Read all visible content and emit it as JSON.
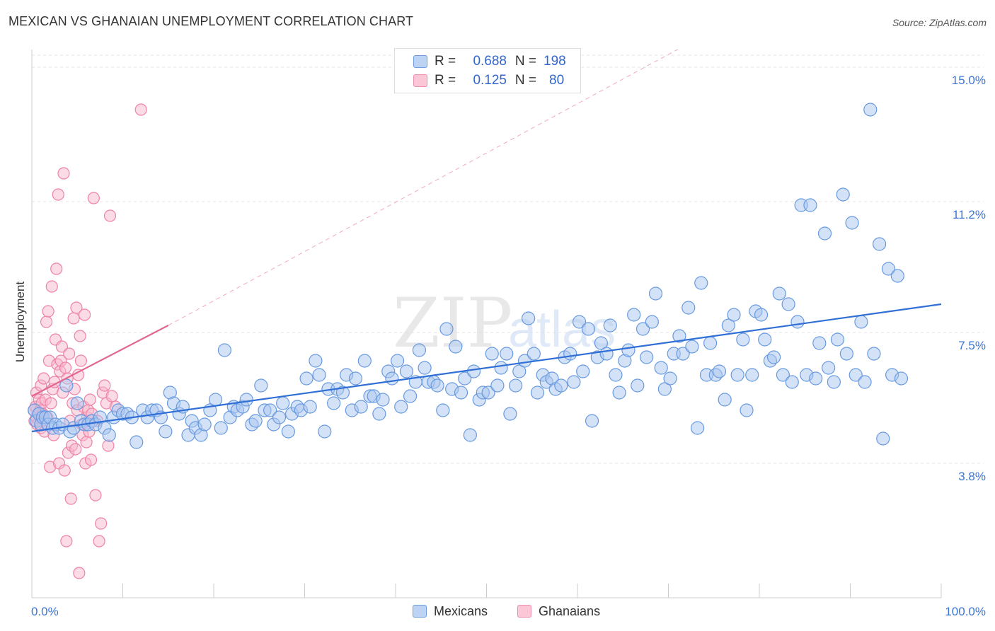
{
  "title": "MEXICAN VS GHANAIAN UNEMPLOYMENT CORRELATION CHART",
  "source": "Source: ZipAtlas.com",
  "watermark": {
    "text_zip": "ZIP",
    "text_atlas": "atlas"
  },
  "legend": {
    "rows": [
      {
        "swatch_color": "#a9c6f0",
        "r_label": "R =",
        "r_value": "0.688",
        "n_label": "N =",
        "n_value": "198"
      },
      {
        "swatch_color": "#f8b8cc",
        "r_label": "R =",
        "r_value": "0.125",
        "n_label": "N =",
        "n_value": "80"
      }
    ]
  },
  "bottom_legend": [
    {
      "label": "Mexicans",
      "color": "#a9c6f0"
    },
    {
      "label": "Ghanaians",
      "color": "#f8b8cc"
    }
  ],
  "chart_data": {
    "type": "scatter",
    "title": "MEXICAN VS GHANAIAN UNEMPLOYMENT CORRELATION CHART",
    "xlabel": "",
    "ylabel": "Unemployment",
    "xlim": [
      0,
      100
    ],
    "ylim": [
      0,
      15.5
    ],
    "x_tick_labels": {
      "left": "0.0%",
      "right": "100.0%"
    },
    "y_ticks": [
      {
        "value": 3.8,
        "label": "3.8%"
      },
      {
        "value": 7.5,
        "label": "7.5%"
      },
      {
        "value": 11.2,
        "label": "11.2%"
      },
      {
        "value": 15.0,
        "label": "15.0%"
      }
    ],
    "grid": true,
    "series": [
      {
        "name": "Mexicans",
        "color": "#6699e0",
        "fill": "#a9c6f0",
        "trend": {
          "x0": 0,
          "y0": 4.7,
          "x1": 100,
          "y1": 8.3,
          "color": "#2f6fd6"
        },
        "points": [
          [
            0.3,
            5.3
          ],
          [
            0.5,
            5.0
          ],
          [
            0.8,
            5.2
          ],
          [
            1.0,
            4.9
          ],
          [
            1.2,
            5.1
          ],
          [
            1.5,
            5.1
          ],
          [
            1.8,
            4.9
          ],
          [
            2.0,
            5.1
          ],
          [
            2.3,
            4.8
          ],
          [
            2.6,
            4.9
          ],
          [
            3.0,
            4.8
          ],
          [
            3.4,
            4.9
          ],
          [
            3.8,
            6.0
          ],
          [
            4.2,
            4.7
          ],
          [
            4.6,
            4.8
          ],
          [
            5.0,
            5.5
          ],
          [
            5.4,
            5.0
          ],
          [
            5.8,
            4.9
          ],
          [
            6.2,
            4.9
          ],
          [
            6.6,
            5.0
          ],
          [
            7.0,
            4.9
          ],
          [
            7.5,
            5.1
          ],
          [
            8.0,
            4.8
          ],
          [
            8.5,
            4.6
          ],
          [
            9.0,
            5.1
          ],
          [
            9.5,
            5.3
          ],
          [
            10.0,
            5.2
          ],
          [
            10.5,
            5.2
          ],
          [
            11.0,
            5.1
          ],
          [
            11.5,
            4.4
          ],
          [
            12.2,
            5.3
          ],
          [
            12.7,
            5.1
          ],
          [
            13.2,
            5.3
          ],
          [
            13.7,
            5.3
          ],
          [
            14.2,
            5.1
          ],
          [
            14.7,
            4.7
          ],
          [
            15.2,
            5.8
          ],
          [
            15.6,
            5.5
          ],
          [
            16.2,
            5.2
          ],
          [
            16.6,
            5.4
          ],
          [
            17.2,
            4.6
          ],
          [
            17.6,
            5.0
          ],
          [
            18.0,
            4.8
          ],
          [
            18.6,
            4.6
          ],
          [
            19.0,
            4.9
          ],
          [
            19.6,
            5.3
          ],
          [
            20.2,
            5.6
          ],
          [
            20.8,
            4.8
          ],
          [
            21.2,
            7.0
          ],
          [
            21.8,
            5.1
          ],
          [
            22.2,
            5.4
          ],
          [
            22.6,
            5.3
          ],
          [
            23.2,
            5.4
          ],
          [
            23.6,
            5.6
          ],
          [
            24.2,
            4.9
          ],
          [
            24.6,
            5.0
          ],
          [
            25.2,
            6.0
          ],
          [
            25.6,
            5.3
          ],
          [
            26.2,
            5.3
          ],
          [
            26.6,
            4.9
          ],
          [
            27.2,
            5.1
          ],
          [
            27.6,
            5.5
          ],
          [
            28.2,
            4.7
          ],
          [
            28.6,
            5.2
          ],
          [
            29.2,
            5.4
          ],
          [
            29.6,
            5.3
          ],
          [
            30.2,
            6.2
          ],
          [
            30.6,
            5.4
          ],
          [
            31.2,
            6.7
          ],
          [
            31.6,
            6.3
          ],
          [
            32.2,
            4.7
          ],
          [
            32.6,
            5.9
          ],
          [
            33.2,
            5.5
          ],
          [
            33.6,
            5.9
          ],
          [
            34.2,
            5.8
          ],
          [
            34.6,
            6.3
          ],
          [
            35.2,
            5.3
          ],
          [
            35.6,
            6.2
          ],
          [
            36.2,
            5.4
          ],
          [
            36.6,
            6.7
          ],
          [
            37.2,
            5.7
          ],
          [
            37.6,
            5.7
          ],
          [
            38.2,
            5.2
          ],
          [
            38.6,
            5.6
          ],
          [
            39.2,
            6.4
          ],
          [
            39.6,
            6.2
          ],
          [
            40.2,
            6.7
          ],
          [
            40.6,
            5.4
          ],
          [
            41.2,
            6.4
          ],
          [
            41.6,
            5.7
          ],
          [
            42.2,
            6.1
          ],
          [
            42.6,
            7.0
          ],
          [
            43.2,
            6.5
          ],
          [
            43.6,
            6.1
          ],
          [
            44.2,
            6.1
          ],
          [
            44.6,
            6.0
          ],
          [
            45.2,
            5.3
          ],
          [
            45.6,
            7.6
          ],
          [
            46.2,
            5.9
          ],
          [
            46.6,
            7.1
          ],
          [
            47.2,
            5.8
          ],
          [
            47.6,
            6.2
          ],
          [
            48.2,
            4.6
          ],
          [
            48.6,
            6.4
          ],
          [
            49.2,
            5.6
          ],
          [
            49.6,
            5.8
          ],
          [
            50.2,
            5.8
          ],
          [
            50.6,
            6.9
          ],
          [
            51.2,
            6.0
          ],
          [
            51.6,
            6.5
          ],
          [
            52.2,
            6.9
          ],
          [
            52.6,
            5.2
          ],
          [
            53.2,
            6.0
          ],
          [
            53.6,
            6.4
          ],
          [
            54.2,
            6.7
          ],
          [
            54.6,
            7.9
          ],
          [
            55.2,
            6.9
          ],
          [
            55.6,
            5.8
          ],
          [
            56.2,
            6.3
          ],
          [
            56.6,
            6.1
          ],
          [
            57.2,
            6.2
          ],
          [
            57.6,
            5.9
          ],
          [
            58.2,
            6.0
          ],
          [
            58.6,
            6.8
          ],
          [
            59.2,
            6.9
          ],
          [
            59.6,
            6.1
          ],
          [
            60.2,
            7.8
          ],
          [
            60.6,
            6.4
          ],
          [
            61.2,
            7.6
          ],
          [
            61.6,
            5.0
          ],
          [
            62.2,
            6.8
          ],
          [
            62.6,
            7.2
          ],
          [
            63.2,
            6.9
          ],
          [
            63.6,
            7.7
          ],
          [
            64.2,
            6.3
          ],
          [
            64.6,
            5.8
          ],
          [
            65.2,
            6.7
          ],
          [
            65.6,
            7.0
          ],
          [
            66.2,
            8.0
          ],
          [
            66.6,
            6.0
          ],
          [
            67.2,
            7.6
          ],
          [
            67.6,
            6.8
          ],
          [
            68.2,
            7.8
          ],
          [
            68.6,
            8.6
          ],
          [
            69.2,
            6.5
          ],
          [
            69.6,
            5.9
          ],
          [
            70.2,
            6.2
          ],
          [
            70.6,
            6.9
          ],
          [
            71.2,
            7.4
          ],
          [
            71.6,
            6.9
          ],
          [
            72.2,
            8.2
          ],
          [
            72.6,
            7.1
          ],
          [
            73.2,
            4.8
          ],
          [
            73.6,
            8.9
          ],
          [
            74.2,
            6.3
          ],
          [
            74.6,
            7.2
          ],
          [
            75.2,
            6.3
          ],
          [
            75.6,
            6.4
          ],
          [
            76.2,
            5.6
          ],
          [
            76.6,
            7.7
          ],
          [
            77.2,
            8.0
          ],
          [
            77.6,
            6.3
          ],
          [
            78.2,
            7.3
          ],
          [
            78.6,
            5.3
          ],
          [
            79.2,
            6.3
          ],
          [
            79.6,
            8.1
          ],
          [
            80.2,
            8.0
          ],
          [
            80.6,
            7.3
          ],
          [
            81.2,
            6.7
          ],
          [
            81.6,
            6.8
          ],
          [
            82.2,
            8.6
          ],
          [
            82.6,
            6.3
          ],
          [
            83.2,
            8.3
          ],
          [
            83.6,
            6.1
          ],
          [
            84.2,
            7.8
          ],
          [
            84.6,
            11.1
          ],
          [
            85.2,
            6.3
          ],
          [
            85.6,
            11.1
          ],
          [
            86.2,
            6.2
          ],
          [
            86.6,
            7.2
          ],
          [
            87.2,
            10.3
          ],
          [
            87.6,
            6.5
          ],
          [
            88.2,
            6.1
          ],
          [
            88.6,
            7.3
          ],
          [
            89.2,
            11.4
          ],
          [
            89.6,
            6.9
          ],
          [
            90.2,
            10.6
          ],
          [
            90.6,
            6.3
          ],
          [
            91.2,
            7.8
          ],
          [
            91.6,
            6.1
          ],
          [
            92.2,
            13.8
          ],
          [
            92.6,
            6.9
          ],
          [
            93.2,
            10.0
          ],
          [
            93.6,
            4.5
          ],
          [
            94.2,
            9.3
          ],
          [
            94.6,
            6.3
          ],
          [
            95.2,
            9.1
          ],
          [
            95.6,
            6.2
          ]
        ]
      },
      {
        "name": "Ghanaians",
        "color": "#ee82a8",
        "fill": "#f8b8cc",
        "trend": {
          "x0": 0,
          "y0": 5.7,
          "x1": 15,
          "y1": 7.7,
          "color": "#e0678f"
        },
        "trend_extension": {
          "x0": 15,
          "y0": 7.7,
          "x1": 71,
          "y1": 15.5
        },
        "points": [
          [
            0.2,
            5.3
          ],
          [
            0.3,
            5.0
          ],
          [
            0.4,
            5.4
          ],
          [
            0.5,
            5.1
          ],
          [
            0.5,
            5.8
          ],
          [
            0.6,
            4.9
          ],
          [
            0.7,
            5.2
          ],
          [
            0.8,
            5.6
          ],
          [
            0.9,
            5.3
          ],
          [
            1.0,
            4.8
          ],
          [
            1.0,
            6.0
          ],
          [
            1.1,
            5.5
          ],
          [
            1.2,
            5.2
          ],
          [
            1.3,
            6.2
          ],
          [
            1.4,
            4.7
          ],
          [
            1.5,
            5.6
          ],
          [
            1.6,
            7.8
          ],
          [
            1.7,
            5.1
          ],
          [
            1.8,
            8.1
          ],
          [
            1.9,
            6.7
          ],
          [
            2.0,
            3.7
          ],
          [
            2.1,
            5.5
          ],
          [
            2.2,
            8.8
          ],
          [
            2.3,
            5.9
          ],
          [
            2.4,
            4.6
          ],
          [
            2.5,
            6.1
          ],
          [
            2.6,
            7.3
          ],
          [
            2.7,
            9.3
          ],
          [
            2.8,
            6.6
          ],
          [
            2.9,
            11.4
          ],
          [
            3.0,
            3.8
          ],
          [
            3.1,
            6.4
          ],
          [
            3.2,
            6.7
          ],
          [
            3.3,
            7.1
          ],
          [
            3.4,
            5.8
          ],
          [
            3.5,
            12.0
          ],
          [
            3.6,
            3.6
          ],
          [
            3.7,
            6.5
          ],
          [
            3.8,
            1.6
          ],
          [
            3.9,
            6.2
          ],
          [
            4.0,
            4.1
          ],
          [
            4.1,
            6.9
          ],
          [
            4.2,
            5.0
          ],
          [
            4.3,
            2.8
          ],
          [
            4.4,
            4.3
          ],
          [
            4.5,
            5.5
          ],
          [
            4.6,
            7.9
          ],
          [
            4.7,
            5.9
          ],
          [
            4.8,
            4.2
          ],
          [
            4.9,
            8.2
          ],
          [
            5.0,
            5.3
          ],
          [
            5.1,
            6.3
          ],
          [
            5.2,
            0.7
          ],
          [
            5.3,
            7.4
          ],
          [
            5.4,
            6.7
          ],
          [
            5.5,
            4.9
          ],
          [
            5.6,
            4.6
          ],
          [
            5.7,
            5.4
          ],
          [
            5.8,
            8.0
          ],
          [
            5.9,
            3.8
          ],
          [
            6.0,
            4.4
          ],
          [
            6.1,
            5.1
          ],
          [
            6.2,
            5.3
          ],
          [
            6.3,
            4.7
          ],
          [
            6.4,
            5.6
          ],
          [
            6.5,
            3.9
          ],
          [
            6.6,
            5.2
          ],
          [
            6.8,
            11.3
          ],
          [
            7.0,
            2.9
          ],
          [
            7.2,
            5.0
          ],
          [
            7.4,
            1.6
          ],
          [
            7.6,
            2.1
          ],
          [
            7.8,
            5.8
          ],
          [
            8.0,
            6.0
          ],
          [
            8.2,
            5.5
          ],
          [
            8.4,
            4.3
          ],
          [
            8.6,
            10.8
          ],
          [
            8.8,
            5.7
          ],
          [
            9.2,
            5.4
          ],
          [
            12.0,
            13.8
          ]
        ]
      }
    ]
  }
}
